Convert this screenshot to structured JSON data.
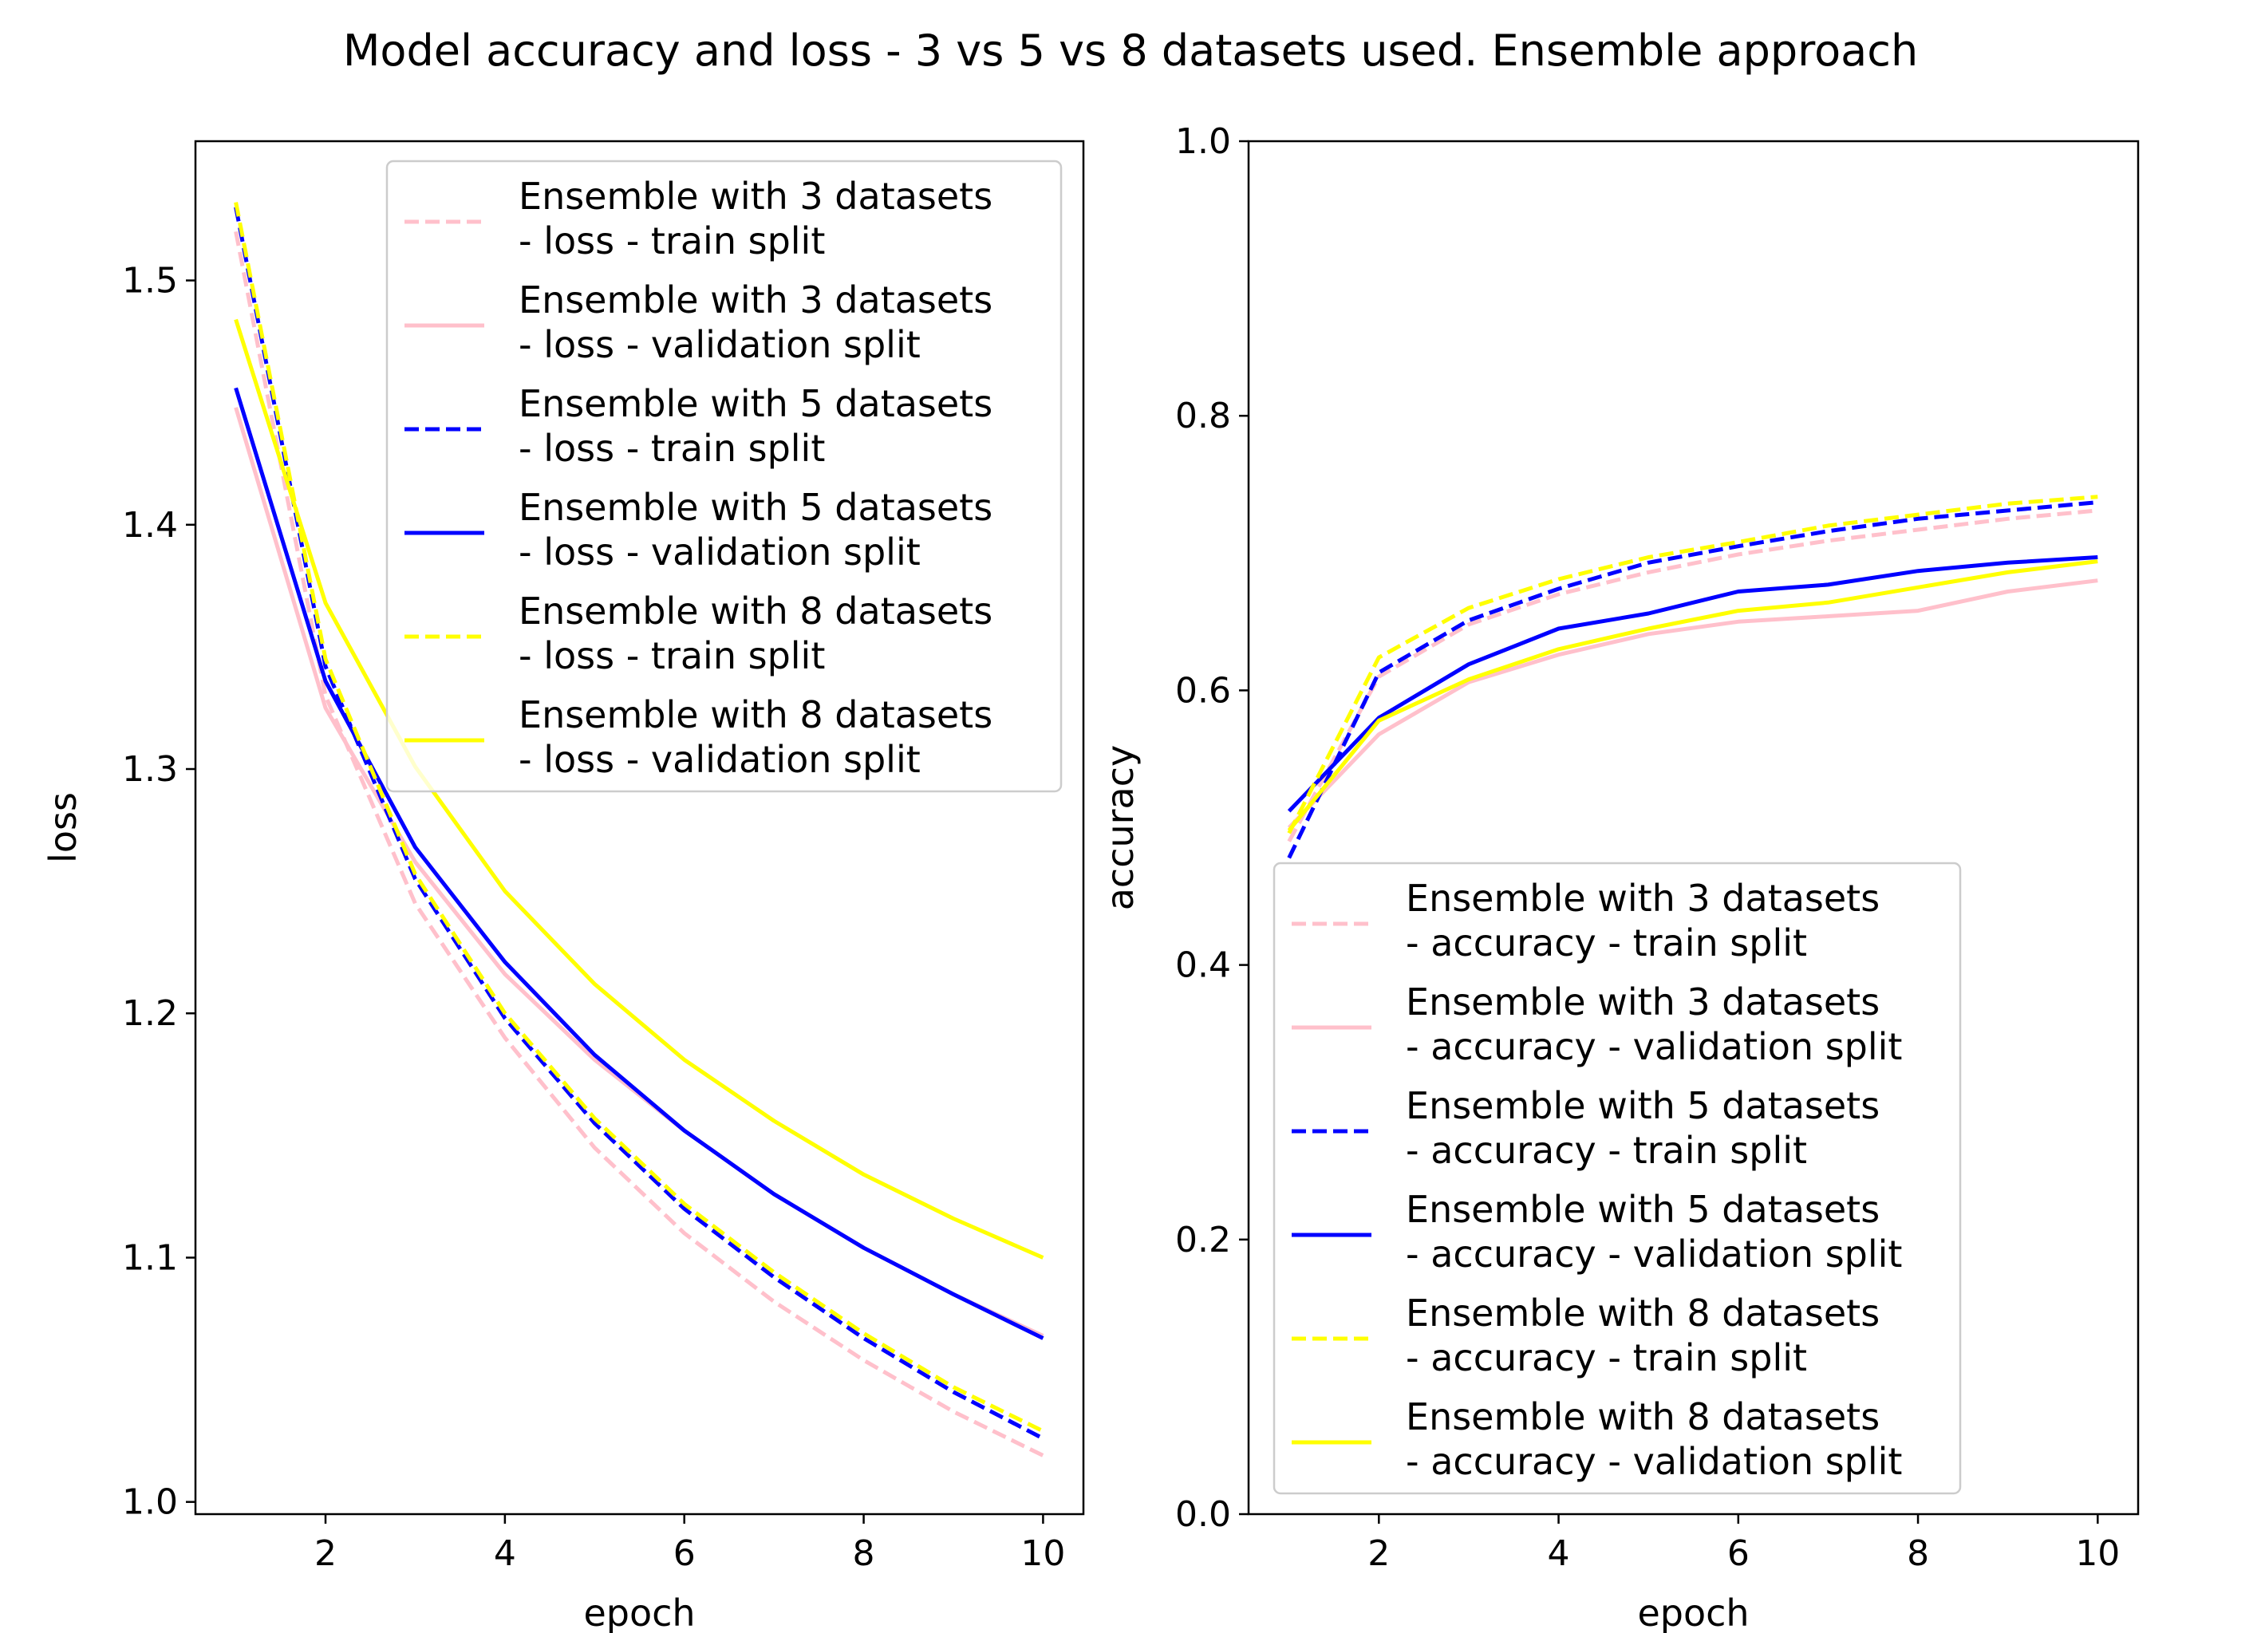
{
  "figure": {
    "suptitle": "Model accuracy and loss - 3 vs 5 vs 8 datasets used. Ensemble  approach"
  },
  "colors": {
    "pink": "#ffc0cb",
    "blue": "#0000ff",
    "yellow": "#ffff00"
  },
  "chart_data": [
    {
      "type": "line",
      "xlabel": "epoch",
      "ylabel": "loss",
      "xlim": [
        0.55,
        10.45
      ],
      "ylim": [
        0.995,
        1.557
      ],
      "xticks": [
        2,
        4,
        6,
        8,
        10
      ],
      "yticks": [
        1.0,
        1.1,
        1.2,
        1.3,
        1.4,
        1.5
      ],
      "ytick_decimals": 1,
      "grid": false,
      "legend_position": "upper right",
      "x": [
        1,
        2,
        3,
        4,
        5,
        6,
        7,
        8,
        9,
        10
      ],
      "series": [
        {
          "name": "Ensemble with 3 datasets\n- loss - train split",
          "color": "#ffc0cb",
          "style": "dashed",
          "values": [
            1.52,
            1.33,
            1.245,
            1.19,
            1.145,
            1.11,
            1.082,
            1.058,
            1.037,
            1.019
          ]
        },
        {
          "name": "Ensemble with 3 datasets\n- loss - validation split",
          "color": "#ffc0cb",
          "style": "solid",
          "values": [
            1.448,
            1.325,
            1.262,
            1.216,
            1.181,
            1.152,
            1.126,
            1.104,
            1.085,
            1.068
          ]
        },
        {
          "name": "Ensemble with 5 datasets\n- loss - train split",
          "color": "#0000ff",
          "style": "dashed",
          "values": [
            1.53,
            1.342,
            1.255,
            1.198,
            1.155,
            1.12,
            1.092,
            1.067,
            1.045,
            1.026
          ]
        },
        {
          "name": "Ensemble with 5 datasets\n- loss - validation split",
          "color": "#0000ff",
          "style": "solid",
          "values": [
            1.456,
            1.336,
            1.268,
            1.221,
            1.183,
            1.152,
            1.126,
            1.104,
            1.085,
            1.067
          ]
        },
        {
          "name": "Ensemble with 8 datasets\n- loss - train split",
          "color": "#ffff00",
          "style": "dashed",
          "values": [
            1.532,
            1.345,
            1.257,
            1.2,
            1.157,
            1.122,
            1.094,
            1.069,
            1.047,
            1.029
          ]
        },
        {
          "name": "Ensemble with 8 datasets\n- loss - validation split",
          "color": "#ffff00",
          "style": "solid",
          "values": [
            1.484,
            1.368,
            1.301,
            1.25,
            1.212,
            1.181,
            1.156,
            1.134,
            1.116,
            1.1
          ]
        }
      ]
    },
    {
      "type": "line",
      "xlabel": "epoch",
      "ylabel": "accuracy",
      "xlim": [
        0.55,
        10.45
      ],
      "ylim": [
        0.0,
        1.0
      ],
      "xticks": [
        2,
        4,
        6,
        8,
        10
      ],
      "yticks": [
        0.0,
        0.2,
        0.4,
        0.6,
        0.8,
        1.0
      ],
      "ytick_decimals": 1,
      "grid": false,
      "legend_position": "lower right",
      "x": [
        1,
        2,
        3,
        4,
        5,
        6,
        7,
        8,
        9,
        10
      ],
      "series": [
        {
          "name": "Ensemble with 3 datasets\n- accuracy - train split",
          "color": "#ffc0cb",
          "style": "dashed",
          "values": [
            0.49,
            0.61,
            0.648,
            0.67,
            0.686,
            0.699,
            0.709,
            0.717,
            0.725,
            0.731
          ]
        },
        {
          "name": "Ensemble with 3 datasets\n- accuracy - validation split",
          "color": "#ffc0cb",
          "style": "solid",
          "values": [
            0.5,
            0.568,
            0.606,
            0.626,
            0.641,
            0.65,
            0.654,
            0.658,
            0.672,
            0.68
          ]
        },
        {
          "name": "Ensemble with 5 datasets\n- accuracy - train split",
          "color": "#0000ff",
          "style": "dashed",
          "values": [
            0.478,
            0.613,
            0.651,
            0.674,
            0.693,
            0.705,
            0.716,
            0.725,
            0.731,
            0.737
          ]
        },
        {
          "name": "Ensemble with 5 datasets\n- accuracy - validation split",
          "color": "#0000ff",
          "style": "solid",
          "values": [
            0.512,
            0.58,
            0.619,
            0.645,
            0.656,
            0.672,
            0.677,
            0.687,
            0.693,
            0.697
          ]
        },
        {
          "name": "Ensemble with 8 datasets\n- accuracy - train split",
          "color": "#ffff00",
          "style": "dashed",
          "values": [
            0.496,
            0.624,
            0.66,
            0.681,
            0.697,
            0.708,
            0.72,
            0.728,
            0.736,
            0.741
          ]
        },
        {
          "name": "Ensemble with 8 datasets\n- accuracy - validation split",
          "color": "#ffff00",
          "style": "solid",
          "values": [
            0.498,
            0.578,
            0.608,
            0.63,
            0.645,
            0.658,
            0.664,
            0.675,
            0.686,
            0.694
          ]
        }
      ]
    }
  ]
}
